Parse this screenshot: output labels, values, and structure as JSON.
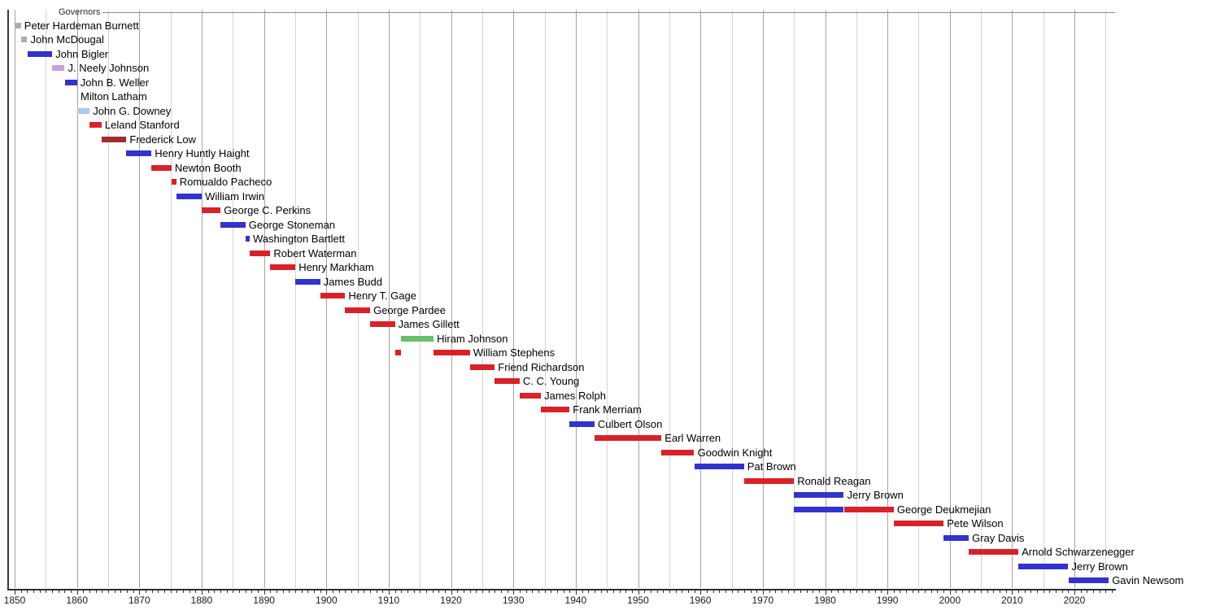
{
  "chart_data": {
    "type": "timeline",
    "title": "Governors",
    "xlabel": "",
    "ylabel": "",
    "x_domain": [
      1849,
      2026.5
    ],
    "grid": "vertical, every 5 years, decades darker",
    "legend_position": "none",
    "x_tick_labels": [
      1850,
      1860,
      1870,
      1880,
      1890,
      1900,
      1910,
      1920,
      1930,
      1940,
      1950,
      1960,
      1970,
      1980,
      1990,
      2000,
      2010,
      2020
    ],
    "minor_tick_interval_years": 1,
    "gridline_interval_years": 5,
    "party_colors": {
      "democratic": "#3232CD",
      "republican": "#DA2128",
      "independent": "#ACACAC",
      "american": "#C9A0DC",
      "lecompton_democrat": "#A8C8EE",
      "union": "#A02C2C",
      "progressive": "#69C06B"
    },
    "rows": [
      {
        "name": "Peter Hardeman Burnett",
        "segments": [
          {
            "start": 1849.97,
            "end": 1851.02,
            "party": "independent"
          }
        ]
      },
      {
        "name": "John McDougal",
        "segments": [
          {
            "start": 1851.02,
            "end": 1852.02,
            "party": "independent"
          }
        ]
      },
      {
        "name": "John Bigler",
        "segments": [
          {
            "start": 1852.02,
            "end": 1856.02,
            "party": "democratic"
          }
        ]
      },
      {
        "name": "J. Neely Johnson",
        "segments": [
          {
            "start": 1856.02,
            "end": 1858.02,
            "party": "american"
          }
        ]
      },
      {
        "name": "John B. Weller",
        "segments": [
          {
            "start": 1858.02,
            "end": 1860.02,
            "party": "democratic"
          }
        ]
      },
      {
        "name": "Milton Latham",
        "segments": [],
        "label_anchor": 1860.05
      },
      {
        "name": "John G. Downey",
        "segments": [
          {
            "start": 1860.04,
            "end": 1862.03,
            "party": "lecompton_democrat"
          }
        ]
      },
      {
        "name": "Leland Stanford",
        "segments": [
          {
            "start": 1862.03,
            "end": 1863.94,
            "party": "republican"
          }
        ]
      },
      {
        "name": "Frederick Low",
        "segments": [
          {
            "start": 1863.94,
            "end": 1867.93,
            "party": "union"
          }
        ]
      },
      {
        "name": "Henry Huntly Haight",
        "segments": [
          {
            "start": 1867.93,
            "end": 1871.94,
            "party": "democratic"
          }
        ]
      },
      {
        "name": "Newton Booth",
        "segments": [
          {
            "start": 1871.94,
            "end": 1875.16,
            "party": "republican"
          }
        ]
      },
      {
        "name": "Romualdo Pacheco",
        "segments": [
          {
            "start": 1875.16,
            "end": 1875.94,
            "party": "republican"
          }
        ]
      },
      {
        "name": "William Irwin",
        "segments": [
          {
            "start": 1875.94,
            "end": 1880.02,
            "party": "democratic"
          }
        ]
      },
      {
        "name": "George C. Perkins",
        "segments": [
          {
            "start": 1880.02,
            "end": 1883.03,
            "party": "republican"
          }
        ]
      },
      {
        "name": "George Stoneman",
        "segments": [
          {
            "start": 1883.03,
            "end": 1887.02,
            "party": "democratic"
          }
        ]
      },
      {
        "name": "Washington Bartlett",
        "segments": [
          {
            "start": 1887.02,
            "end": 1887.7,
            "party": "democratic"
          }
        ]
      },
      {
        "name": "Robert Waterman",
        "segments": [
          {
            "start": 1887.7,
            "end": 1891.02,
            "party": "republican"
          }
        ]
      },
      {
        "name": "Henry Markham",
        "segments": [
          {
            "start": 1891.02,
            "end": 1895.03,
            "party": "republican"
          }
        ]
      },
      {
        "name": "James Budd",
        "segments": [
          {
            "start": 1895.03,
            "end": 1899.01,
            "party": "democratic"
          }
        ]
      },
      {
        "name": "Henry T. Gage",
        "segments": [
          {
            "start": 1899.01,
            "end": 1903.02,
            "party": "republican"
          }
        ]
      },
      {
        "name": "George Pardee",
        "segments": [
          {
            "start": 1903.02,
            "end": 1907.02,
            "party": "republican"
          }
        ]
      },
      {
        "name": "James Gillett",
        "segments": [
          {
            "start": 1907.02,
            "end": 1911.01,
            "party": "republican"
          }
        ]
      },
      {
        "name": "Hiram Johnson",
        "segments": [
          {
            "start": 1911.95,
            "end": 1917.2,
            "party": "progressive"
          }
        ]
      },
      {
        "name": "William Stephens",
        "segments": [
          {
            "start": 1911.05,
            "end": 1911.95,
            "party": "republican"
          },
          {
            "start": 1917.2,
            "end": 1923.02,
            "party": "republican"
          }
        ]
      },
      {
        "name": "Friend Richardson",
        "segments": [
          {
            "start": 1923.02,
            "end": 1927.01,
            "party": "republican"
          }
        ]
      },
      {
        "name": "C. C. Young",
        "segments": [
          {
            "start": 1927.01,
            "end": 1931.01,
            "party": "republican"
          }
        ]
      },
      {
        "name": "James Rolph",
        "segments": [
          {
            "start": 1931.01,
            "end": 1934.42,
            "party": "republican"
          }
        ]
      },
      {
        "name": "Frank Merriam",
        "segments": [
          {
            "start": 1934.42,
            "end": 1939.01,
            "party": "republican"
          }
        ]
      },
      {
        "name": "Culbert Olson",
        "segments": [
          {
            "start": 1939.01,
            "end": 1943.01,
            "party": "democratic"
          }
        ]
      },
      {
        "name": "Earl Warren",
        "segments": [
          {
            "start": 1943.01,
            "end": 1953.76,
            "party": "republican"
          }
        ]
      },
      {
        "name": "Goodwin Knight",
        "segments": [
          {
            "start": 1953.76,
            "end": 1959.01,
            "party": "republican"
          }
        ]
      },
      {
        "name": "Pat Brown",
        "segments": [
          {
            "start": 1959.01,
            "end": 1967.0,
            "party": "democratic"
          }
        ]
      },
      {
        "name": "Ronald Reagan",
        "segments": [
          {
            "start": 1967.0,
            "end": 1975.01,
            "party": "republican"
          }
        ]
      },
      {
        "name": "Jerry Brown",
        "segments": [
          {
            "start": 1975.01,
            "end": 1983.01,
            "party": "democratic"
          }
        ]
      },
      {
        "name": "George Deukmejian",
        "segments": [
          {
            "start": 1975.01,
            "end": 1983.01,
            "party": "democratic"
          },
          {
            "start": 1983.01,
            "end": 1991.02,
            "party": "republican"
          }
        ]
      },
      {
        "name": "Pete Wilson",
        "segments": [
          {
            "start": 1991.02,
            "end": 1999.01,
            "party": "republican"
          }
        ]
      },
      {
        "name": "Gray Davis",
        "segments": [
          {
            "start": 1999.01,
            "end": 2003.05,
            "party": "democratic"
          }
        ]
      },
      {
        "name": "Arnold Schwarzenegger",
        "segments": [
          {
            "start": 2003.05,
            "end": 2011.01,
            "party": "republican"
          }
        ]
      },
      {
        "name": "Jerry Brown",
        "segments": [
          {
            "start": 2011.01,
            "end": 2019.02,
            "party": "democratic"
          }
        ]
      },
      {
        "name": "Gavin Newsom",
        "segments": [
          {
            "start": 2019.02,
            "end": 2025.5,
            "party": "democratic"
          }
        ]
      }
    ]
  }
}
